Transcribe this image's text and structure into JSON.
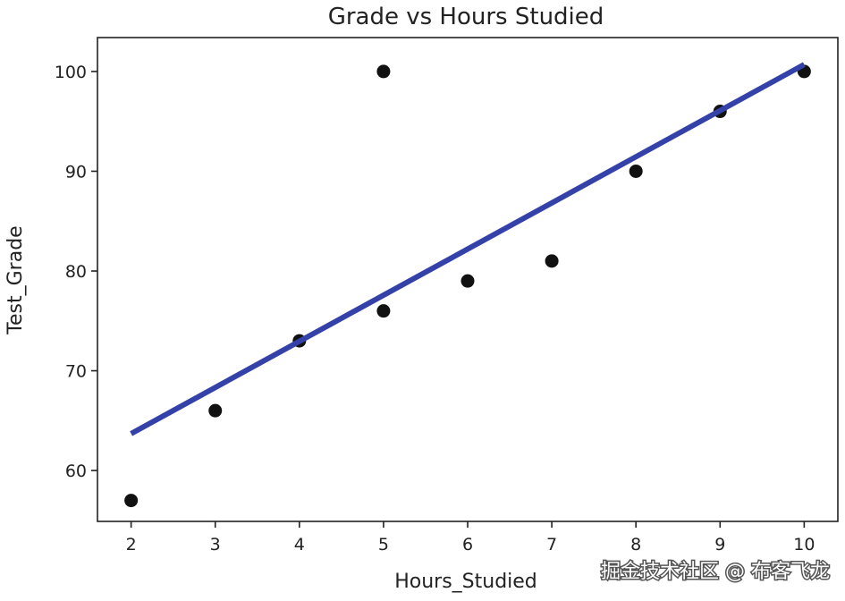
{
  "chart_data": {
    "type": "scatter",
    "title": "Grade vs Hours Studied",
    "xlabel": "Hours_Studied",
    "ylabel": "Test_Grade",
    "xlim": [
      1.6,
      10.4
    ],
    "ylim": [
      54.9,
      103.4
    ],
    "xticks": [
      2,
      3,
      4,
      5,
      6,
      7,
      8,
      9,
      10
    ],
    "yticks": [
      60,
      70,
      80,
      90,
      100
    ],
    "grid": false,
    "points": [
      {
        "x": 2,
        "y": 57
      },
      {
        "x": 3,
        "y": 66
      },
      {
        "x": 4,
        "y": 73
      },
      {
        "x": 5,
        "y": 76
      },
      {
        "x": 5,
        "y": 100
      },
      {
        "x": 6,
        "y": 79
      },
      {
        "x": 7,
        "y": 81
      },
      {
        "x": 8,
        "y": 90
      },
      {
        "x": 9,
        "y": 96
      },
      {
        "x": 10,
        "y": 100
      }
    ],
    "fit_line": {
      "x": [
        2,
        10
      ],
      "y": [
        63.7,
        100.7
      ],
      "color": "#3341a8"
    },
    "point_color": "#111111"
  },
  "watermark": "掘金技术社区 @ 布客飞龙"
}
